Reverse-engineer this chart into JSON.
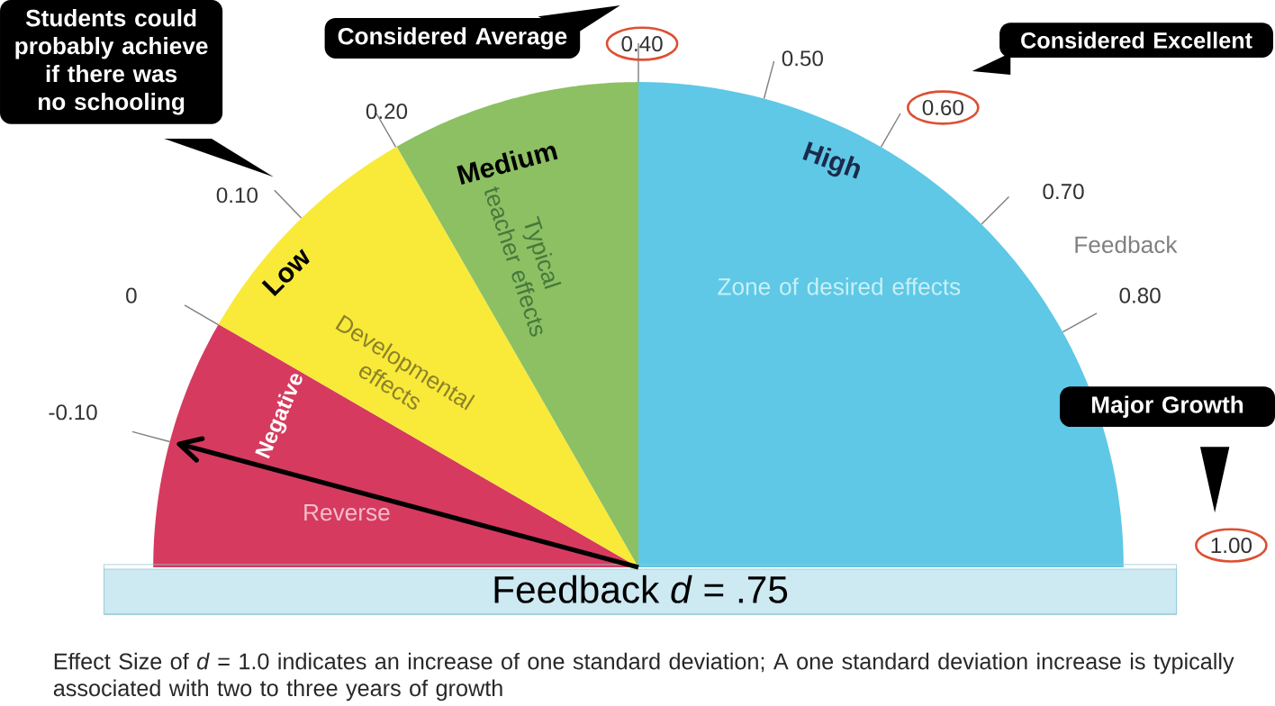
{
  "chart_data": {
    "type": "pie",
    "title": "Feedback *d* = .75",
    "categories": [
      "Negative",
      "Low",
      "Medium",
      "High"
    ],
    "values": [
      16.7,
      16.7,
      16.6,
      50
    ],
    "colors": [
      "#d63b5f",
      "#f9ea3a",
      "#8cc063",
      "#5ec8e6"
    ],
    "needle": "Negative",
    "annotations": [
      "-0.10",
      "0",
      "0.10",
      "0.20",
      "0.40",
      "0.50",
      "0.60",
      "0.70",
      "0.80",
      "1.00",
      "Students could probably achieve if there was no schooling",
      "Considered Average",
      "Considered Excellent",
      "Major Growth",
      "Reverse",
      "Developmental effects",
      "Typical teacher effects",
      "Zone of desired effects",
      "Feedback",
      "Effect Size of *d* = 1.0 indicates an increase of one standard deviation; A one standard deviation increase is typically associated with two to three years of growth"
    ]
  }
}
